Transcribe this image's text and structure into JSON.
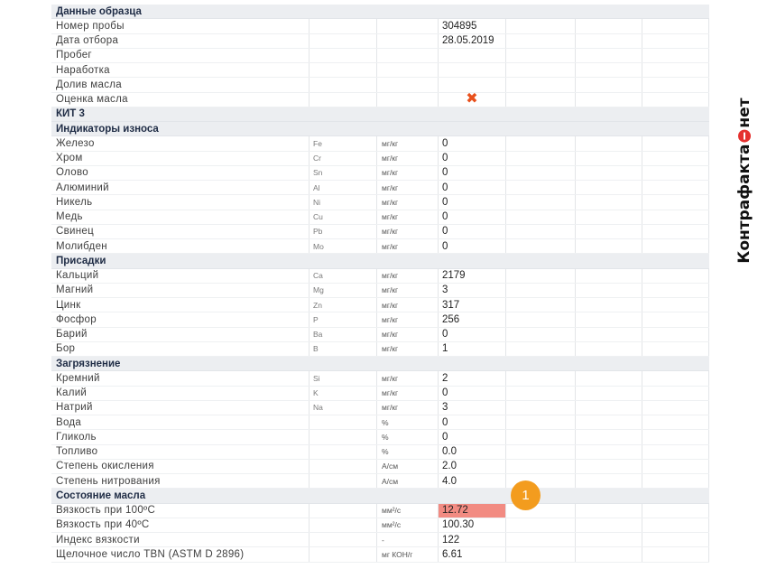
{
  "brand": {
    "left": "Контрафакта",
    "right": "нет"
  },
  "callout": {
    "number": "1"
  },
  "rows": [
    {
      "type": "section",
      "name": "Данные образца"
    },
    {
      "type": "data",
      "name": "Номер пробы",
      "sym": "",
      "unit": "",
      "value": "304895"
    },
    {
      "type": "data",
      "name": "Дата отбора",
      "sym": "",
      "unit": "",
      "value": "28.05.2019"
    },
    {
      "type": "data",
      "name": "Пробег",
      "sym": "",
      "unit": "",
      "value": ""
    },
    {
      "type": "data",
      "name": "Наработка",
      "sym": "",
      "unit": "",
      "value": ""
    },
    {
      "type": "data",
      "name": "Долив масла",
      "sym": "",
      "unit": "",
      "value": ""
    },
    {
      "type": "data",
      "name": "Оценка масла",
      "sym": "",
      "unit": "",
      "value": "",
      "mark": "x-mark"
    },
    {
      "type": "section",
      "name": "КИТ 3"
    },
    {
      "type": "section",
      "name": "Индикаторы износа"
    },
    {
      "type": "data",
      "name": "Железо",
      "sym": "Fe",
      "unit": "мг/кг",
      "value": "0"
    },
    {
      "type": "data",
      "name": "Хром",
      "sym": "Cr",
      "unit": "мг/кг",
      "value": "0"
    },
    {
      "type": "data",
      "name": "Олово",
      "sym": "Sn",
      "unit": "мг/кг",
      "value": "0"
    },
    {
      "type": "data",
      "name": "Алюминий",
      "sym": "Al",
      "unit": "мг/кг",
      "value": "0"
    },
    {
      "type": "data",
      "name": "Никель",
      "sym": "Ni",
      "unit": "мг/кг",
      "value": "0"
    },
    {
      "type": "data",
      "name": "Медь",
      "sym": "Cu",
      "unit": "мг/кг",
      "value": "0"
    },
    {
      "type": "data",
      "name": "Свинец",
      "sym": "Pb",
      "unit": "мг/кг",
      "value": "0"
    },
    {
      "type": "data",
      "name": "Молибден",
      "sym": "Mo",
      "unit": "мг/кг",
      "value": "0"
    },
    {
      "type": "section",
      "name": "Присадки"
    },
    {
      "type": "data",
      "name": "Кальций",
      "sym": "Ca",
      "unit": "мг/кг",
      "value": "2179"
    },
    {
      "type": "data",
      "name": "Магний",
      "sym": "Mg",
      "unit": "мг/кг",
      "value": "3"
    },
    {
      "type": "data",
      "name": "Цинк",
      "sym": "Zn",
      "unit": "мг/кг",
      "value": "317"
    },
    {
      "type": "data",
      "name": "Фосфор",
      "sym": "P",
      "unit": "мг/кг",
      "value": "256"
    },
    {
      "type": "data",
      "name": "Барий",
      "sym": "Ba",
      "unit": "мг/кг",
      "value": "0"
    },
    {
      "type": "data",
      "name": "Бор",
      "sym": "B",
      "unit": "мг/кг",
      "value": "1"
    },
    {
      "type": "section",
      "name": "Загрязнение"
    },
    {
      "type": "data",
      "name": "Кремний",
      "sym": "Si",
      "unit": "мг/кг",
      "value": "2"
    },
    {
      "type": "data",
      "name": "Калий",
      "sym": "K",
      "unit": "мг/кг",
      "value": "0"
    },
    {
      "type": "data",
      "name": "Натрий",
      "sym": "Na",
      "unit": "мг/кг",
      "value": "3"
    },
    {
      "type": "data",
      "name": "Вода",
      "sym": "",
      "unit": "%",
      "value": "0"
    },
    {
      "type": "data",
      "name": "Гликоль",
      "sym": "",
      "unit": "%",
      "value": "0"
    },
    {
      "type": "data",
      "name": "Топливо",
      "sym": "",
      "unit": "%",
      "value": "0.0"
    },
    {
      "type": "data",
      "name": "Степень окисления",
      "sym": "",
      "unit": "А/см",
      "value": "2.0"
    },
    {
      "type": "data",
      "name": "Степень нитрования",
      "sym": "",
      "unit": "А/см",
      "value": "4.0"
    },
    {
      "type": "section",
      "name": "Состояние масла"
    },
    {
      "type": "data",
      "name": "Вязкость при 100ºС",
      "sym": "",
      "unit": "мм²/с",
      "value": "12.72",
      "highlight": true,
      "highlight_color": "#f28b82"
    },
    {
      "type": "data",
      "name": "Вязкость при 40ºС",
      "sym": "",
      "unit": "мм²/с",
      "value": "100.30"
    },
    {
      "type": "data",
      "name": "Индекс вязкости",
      "sym": "",
      "unit": "-",
      "value": "122"
    },
    {
      "type": "data",
      "name": "Щелочное число TBN (ASTM D 2896)",
      "sym": "",
      "unit": "мг КОН/г",
      "value": "6.61"
    }
  ]
}
